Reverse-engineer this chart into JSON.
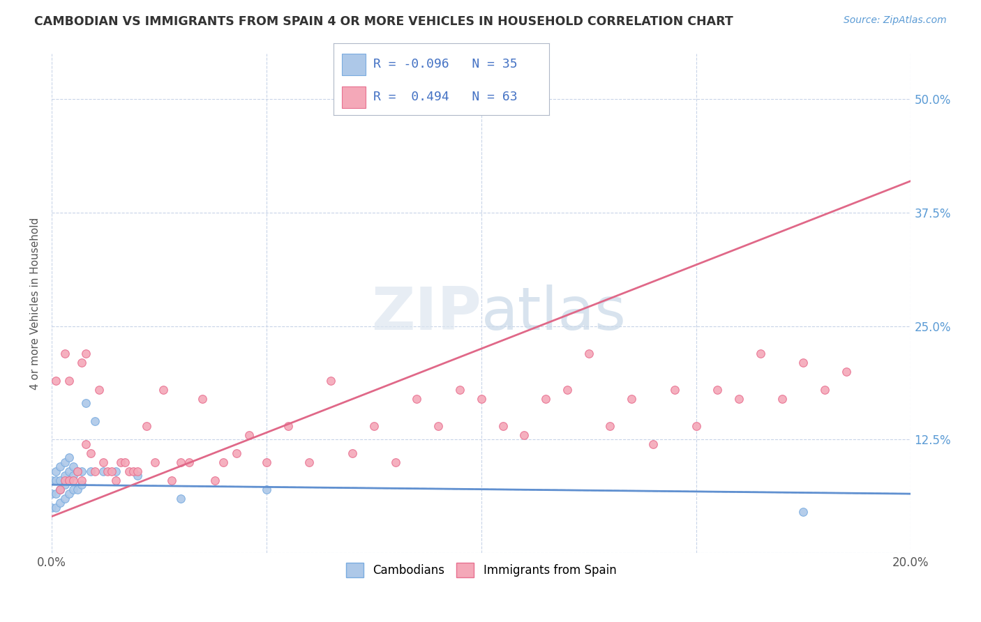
{
  "title": "CAMBODIAN VS IMMIGRANTS FROM SPAIN 4 OR MORE VEHICLES IN HOUSEHOLD CORRELATION CHART",
  "source": "Source: ZipAtlas.com",
  "ylabel_label": "4 or more Vehicles in Household",
  "xlim": [
    0.0,
    0.2
  ],
  "ylim": [
    0.0,
    0.55
  ],
  "xtick_positions": [
    0.0,
    0.05,
    0.1,
    0.15,
    0.2
  ],
  "xtick_labels": [
    "0.0%",
    "",
    "",
    "",
    "20.0%"
  ],
  "ytick_positions": [
    0.0,
    0.125,
    0.25,
    0.375,
    0.5
  ],
  "ytick_labels": [
    "",
    "12.5%",
    "25.0%",
    "37.5%",
    "50.0%"
  ],
  "r_cambodian": -0.096,
  "n_cambodian": 35,
  "r_spain": 0.494,
  "n_spain": 63,
  "color_cambodian": "#adc8e8",
  "color_spain": "#f4a8b8",
  "edge_cambodian": "#7aace0",
  "edge_spain": "#e87090",
  "line_color_cambodian": "#6090d0",
  "line_color_spain": "#e06888",
  "background_color": "#ffffff",
  "grid_color": "#c8d4e8",
  "cambodian_x": [
    0.0,
    0.0,
    0.0,
    0.001,
    0.001,
    0.001,
    0.001,
    0.002,
    0.002,
    0.002,
    0.002,
    0.003,
    0.003,
    0.003,
    0.003,
    0.004,
    0.004,
    0.004,
    0.004,
    0.005,
    0.005,
    0.005,
    0.006,
    0.006,
    0.007,
    0.007,
    0.008,
    0.009,
    0.01,
    0.012,
    0.015,
    0.02,
    0.03,
    0.05,
    0.175
  ],
  "cambodian_y": [
    0.05,
    0.065,
    0.08,
    0.05,
    0.065,
    0.08,
    0.09,
    0.055,
    0.07,
    0.08,
    0.095,
    0.06,
    0.075,
    0.085,
    0.1,
    0.065,
    0.08,
    0.09,
    0.105,
    0.07,
    0.085,
    0.095,
    0.07,
    0.09,
    0.075,
    0.09,
    0.165,
    0.09,
    0.145,
    0.09,
    0.09,
    0.085,
    0.06,
    0.07,
    0.045
  ],
  "spain_x": [
    0.001,
    0.002,
    0.003,
    0.003,
    0.004,
    0.004,
    0.005,
    0.006,
    0.007,
    0.007,
    0.008,
    0.008,
    0.009,
    0.01,
    0.011,
    0.012,
    0.013,
    0.014,
    0.015,
    0.016,
    0.017,
    0.018,
    0.019,
    0.02,
    0.022,
    0.024,
    0.026,
    0.028,
    0.03,
    0.032,
    0.035,
    0.038,
    0.04,
    0.043,
    0.046,
    0.05,
    0.055,
    0.06,
    0.065,
    0.07,
    0.075,
    0.08,
    0.085,
    0.09,
    0.095,
    0.1,
    0.105,
    0.11,
    0.115,
    0.12,
    0.125,
    0.13,
    0.135,
    0.14,
    0.145,
    0.15,
    0.155,
    0.16,
    0.165,
    0.17,
    0.175,
    0.18,
    0.185
  ],
  "spain_y": [
    0.19,
    0.07,
    0.08,
    0.22,
    0.08,
    0.19,
    0.08,
    0.09,
    0.21,
    0.08,
    0.22,
    0.12,
    0.11,
    0.09,
    0.18,
    0.1,
    0.09,
    0.09,
    0.08,
    0.1,
    0.1,
    0.09,
    0.09,
    0.09,
    0.14,
    0.1,
    0.18,
    0.08,
    0.1,
    0.1,
    0.17,
    0.08,
    0.1,
    0.11,
    0.13,
    0.1,
    0.14,
    0.1,
    0.19,
    0.11,
    0.14,
    0.1,
    0.17,
    0.14,
    0.18,
    0.17,
    0.14,
    0.13,
    0.17,
    0.18,
    0.22,
    0.14,
    0.17,
    0.12,
    0.18,
    0.14,
    0.18,
    0.17,
    0.22,
    0.17,
    0.21,
    0.18,
    0.2
  ]
}
